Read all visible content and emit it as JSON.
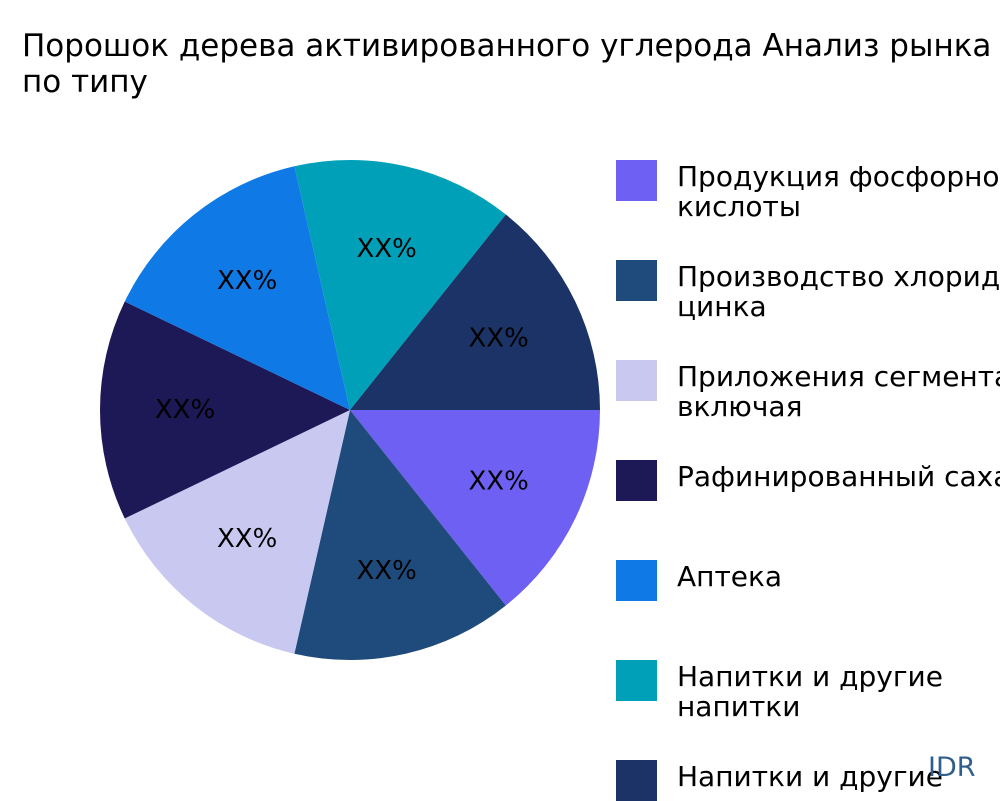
{
  "title_lines": [
    "Порошок дерева активированного углерода Анализ рынка",
    "по типу"
  ],
  "watermark": "IDR",
  "chart_data": {
    "type": "pie",
    "title": "Порошок дерева активированного углерода Анализ рынка по типу",
    "legend_position": "right",
    "slices": [
      {
        "label": [
          "Продукция фосфорной",
          "кислоты"
        ],
        "value": 14.2857,
        "display": "XX%",
        "color": "#6e60f2"
      },
      {
        "label": [
          "Производство хлорида",
          "цинка"
        ],
        "value": 14.2857,
        "display": "XX%",
        "color": "#1f4b7c"
      },
      {
        "label": [
          "Приложения сегмента",
          "включая"
        ],
        "value": 14.2857,
        "display": "XX%",
        "color": "#c8c8f1"
      },
      {
        "label": [
          "Рафинированный сахар"
        ],
        "value": 14.2857,
        "display": "XX%",
        "color": "#1d1856"
      },
      {
        "label": [
          "Аптека"
        ],
        "value": 14.2857,
        "display": "XX%",
        "color": "#0f79e5"
      },
      {
        "label": [
          "Напитки и другие",
          "напитки"
        ],
        "value": 14.2857,
        "display": "XX%",
        "color": "#00a0b9"
      },
      {
        "label": [
          "Напитки и другие"
        ],
        "value": 14.2857,
        "display": "XX%",
        "color": "#1b3366"
      }
    ]
  }
}
